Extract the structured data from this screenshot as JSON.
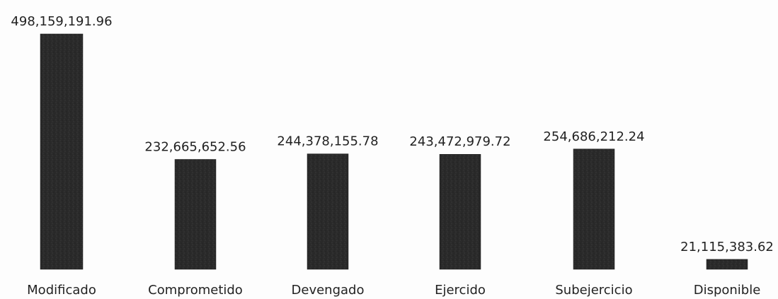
{
  "chart_data": {
    "type": "bar",
    "categories": [
      "Modificado",
      "Comprometido",
      "Devengado",
      "Ejercido",
      "Subejercicio",
      "Disponible"
    ],
    "values": [
      498159191.96,
      232665652.56,
      244378155.78,
      243472979.72,
      254686212.24,
      21115383.62
    ],
    "data_labels": [
      "498,159,191.96",
      "232,665,652.56",
      "244,378,155.78",
      "243,472,979.72",
      "254,686,212.24",
      "21,115,383.62"
    ],
    "title": "",
    "xlabel": "",
    "ylabel": "",
    "ylim": [
      0,
      498159191.96
    ],
    "grid": false,
    "bar_color": "#2b2b2b"
  }
}
